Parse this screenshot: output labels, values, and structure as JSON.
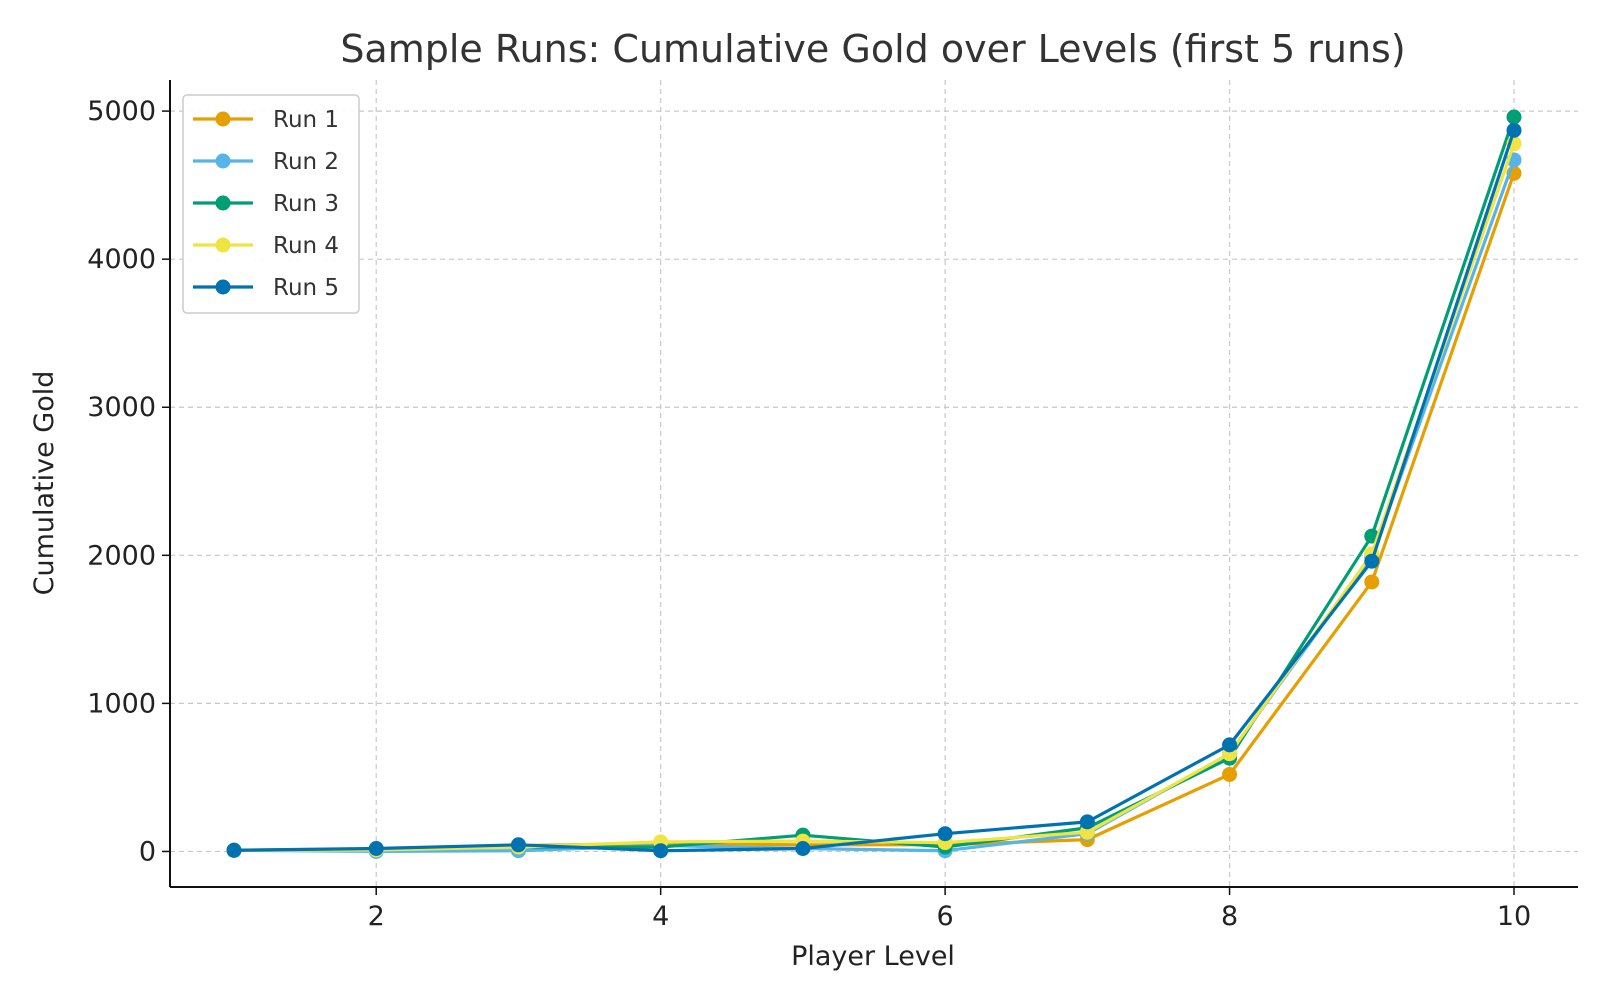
{
  "chart_data": {
    "type": "line",
    "title": "Sample Runs: Cumulative Gold over Levels (first 5 runs)",
    "xlabel": "Player Level",
    "ylabel": "Cumulative Gold",
    "x": [
      1,
      2,
      3,
      4,
      5,
      6,
      7,
      8,
      9,
      10
    ],
    "xlim": [
      0.55,
      10.45
    ],
    "ylim": [
      -240,
      5210
    ],
    "xticks": [
      2,
      4,
      6,
      8,
      10
    ],
    "yticks": [
      0,
      1000,
      2000,
      3000,
      4000,
      5000
    ],
    "grid": true,
    "legend_position": "top-left",
    "series": [
      {
        "name": "Run 1",
        "color": "#E69F00",
        "values": [
          8,
          10,
          40,
          55,
          45,
          45,
          80,
          520,
          1820,
          4580
        ]
      },
      {
        "name": "Run 2",
        "color": "#56B4E9",
        "values": [
          8,
          0,
          5,
          40,
          20,
          5,
          120,
          660,
          1990,
          4670
        ]
      },
      {
        "name": "Run 3",
        "color": "#009E73",
        "values": [
          8,
          15,
          30,
          30,
          110,
          30,
          160,
          630,
          2130,
          4960
        ]
      },
      {
        "name": "Run 4",
        "color": "#F0E442",
        "values": [
          8,
          10,
          30,
          65,
          70,
          60,
          130,
          660,
          2010,
          4780
        ]
      },
      {
        "name": "Run 5",
        "color": "#0072B2",
        "values": [
          8,
          20,
          45,
          5,
          20,
          120,
          200,
          720,
          1960,
          4870
        ]
      }
    ]
  }
}
